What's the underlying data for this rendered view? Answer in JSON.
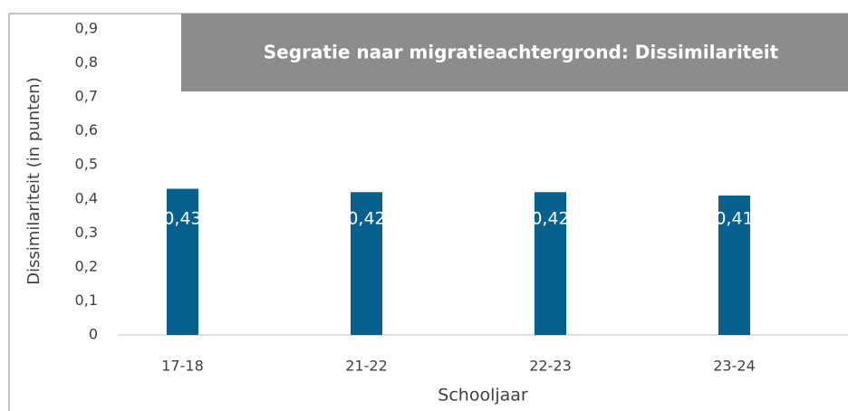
{
  "chart_data": {
    "type": "bar",
    "title": "Segratie naar migratieachtergrond: Dissimilariteit",
    "x_label": "Schooljaar",
    "y_label": "Dissimilariteit (in punten)",
    "categories": [
      "17-18",
      "21-22",
      "22-23",
      "23-24"
    ],
    "values": [
      0.43,
      0.42,
      0.42,
      0.41
    ],
    "value_labels": [
      "0,43",
      "0,42",
      "0,42",
      "0,41"
    ],
    "color": "#08608f",
    "ylim": [
      0,
      0.9
    ],
    "yticks": [
      0,
      {
        "value": 0.1,
        "label": "0,1"
      },
      {
        "value": 0.2,
        "label": "0,2"
      },
      {
        "value": 0.3,
        "label": "0,3"
      },
      {
        "value": 0.4,
        "label": "0,4"
      },
      {
        "value": 0.5,
        "label": "0,5"
      },
      {
        "value": 0.6,
        "label": "0,6"
      },
      {
        "value": 0.7,
        "label": "0,7"
      },
      {
        "value": 0.8,
        "label": "0,8"
      },
      {
        "value": 0.9,
        "label": "0,9"
      }
    ],
    "grid": false
  }
}
